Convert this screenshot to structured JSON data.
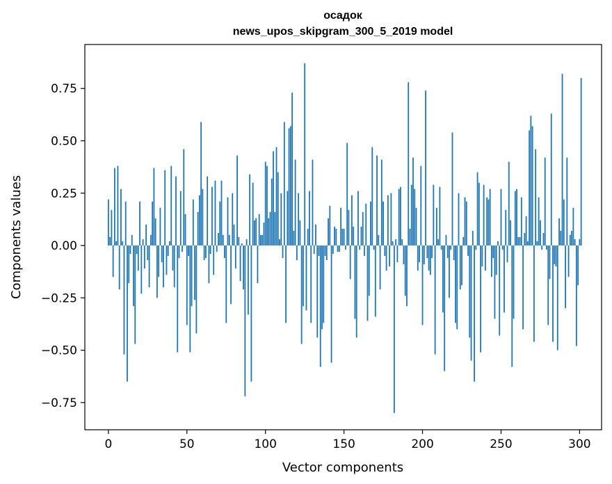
{
  "chart_data": {
    "type": "bar",
    "title_line1": "осадок",
    "title_line2": "news_upos_skipgram_300_5_2019 model",
    "xlabel": "Vector components",
    "ylabel": "Components values",
    "xlim": [
      -15,
      314
    ],
    "ylim": [
      -0.88,
      0.96
    ],
    "xticks": [
      0,
      50,
      100,
      150,
      200,
      250,
      300
    ],
    "yticks": [
      -0.75,
      -0.5,
      -0.25,
      0.0,
      0.25,
      0.5,
      0.75
    ],
    "ytick_labels": [
      "−0.75",
      "−0.50",
      "−0.25",
      "0.00",
      "0.25",
      "0.50",
      "0.75"
    ],
    "bar_color": "#1f77b4",
    "values": [
      0.22,
      0.04,
      0.17,
      -0.15,
      0.37,
      0.02,
      0.38,
      -0.21,
      0.27,
      0.02,
      -0.52,
      0.21,
      -0.65,
      -0.18,
      -0.04,
      0.05,
      -0.29,
      -0.47,
      -0.04,
      -0.12,
      0.21,
      -0.23,
      0.03,
      -0.11,
      0.1,
      -0.07,
      -0.2,
      0.05,
      0.21,
      0.37,
      0.13,
      -0.25,
      -0.15,
      0.18,
      -0.08,
      -0.2,
      0.36,
      -0.14,
      -0.05,
      0.02,
      0.38,
      -0.12,
      -0.2,
      0.33,
      -0.51,
      -0.06,
      0.26,
      -0.03,
      0.46,
      0.15,
      -0.38,
      -0.05,
      -0.51,
      -0.29,
      0.22,
      -0.26,
      -0.42,
      0.16,
      0.24,
      0.59,
      0.27,
      -0.07,
      -0.06,
      0.33,
      -0.18,
      -0.04,
      0.28,
      -0.14,
      0.31,
      -0.03,
      0.06,
      0.21,
      0.31,
      0.05,
      -0.06,
      -0.37,
      0.23,
      0.05,
      -0.28,
      0.25,
      0.1,
      -0.11,
      0.43,
      0.04,
      -0.17,
      0.01,
      -0.21,
      -0.72,
      0.03,
      -0.33,
      0.34,
      -0.65,
      0.3,
      0.12,
      0.13,
      -0.18,
      0.15,
      0.05,
      0.05,
      0.11,
      0.4,
      0.38,
      0.13,
      0.16,
      0.32,
      0.45,
      0.16,
      0.47,
      0.35,
      0.03,
      0.25,
      -0.06,
      0.59,
      -0.37,
      0.26,
      0.56,
      0.57,
      0.73,
      0.07,
      0.41,
      -0.07,
      0.25,
      0.12,
      -0.47,
      -0.29,
      0.87,
      -0.31,
      0.08,
      0.26,
      -0.37,
      0.41,
      -0.04,
      0.1,
      -0.44,
      -0.05,
      -0.58,
      -0.4,
      -0.37,
      -0.05,
      -0.07,
      0.13,
      0.19,
      -0.56,
      -0.04,
      0.09,
      0.08,
      -0.03,
      -0.03,
      0.18,
      0.08,
      0.08,
      -0.02,
      0.49,
      0.17,
      -0.16,
      0.24,
      0.09,
      -0.35,
      -0.44,
      0.26,
      -0.02,
      0.09,
      0.16,
      -0.05,
      0.2,
      -0.36,
      -0.24,
      0.21,
      0.47,
      -0.02,
      -0.34,
      0.43,
      0.05,
      -0.21,
      0.41,
      0.21,
      -0.05,
      -0.12,
      0.24,
      -0.1,
      0.25,
      0.02,
      -0.8,
      0.03,
      -0.08,
      0.27,
      0.28,
      0.03,
      -0.09,
      -0.24,
      -0.29,
      0.78,
      0.08,
      0.29,
      0.42,
      0.27,
      0.18,
      -0.12,
      -0.08,
      0.38,
      -0.38,
      -0.09,
      0.74,
      -0.06,
      -0.12,
      -0.14,
      -0.06,
      0.29,
      -0.52,
      0.18,
      0.03,
      0.28,
      -0.02,
      -0.32,
      -0.6,
      0.05,
      -0.06,
      -0.25,
      -0.02,
      0.54,
      -0.07,
      -0.37,
      -0.4,
      0.25,
      -0.21,
      -0.19,
      0.04,
      0.23,
      0.21,
      -0.05,
      -0.44,
      -0.55,
      0.07,
      -0.65,
      -0.02,
      0.35,
      0.3,
      -0.51,
      -0.1,
      0.29,
      -0.12,
      0.23,
      0.22,
      0.27,
      -0.15,
      -0.06,
      -0.35,
      -0.14,
      0.02,
      -0.43,
      0.27,
      -0.02,
      -0.32,
      0.17,
      -0.08,
      0.4,
      0.12,
      -0.58,
      -0.35,
      0.26,
      0.27,
      0.04,
      0.04,
      0.23,
      -0.4,
      0.06,
      0.14,
      0.02,
      0.55,
      0.62,
      0.57,
      -0.46,
      0.46,
      0.02,
      0.23,
      0.12,
      -0.02,
      0.06,
      0.42,
      -0.02,
      -0.38,
      -0.16,
      0.63,
      -0.46,
      -0.09,
      -0.1,
      -0.5,
      0.13,
      0.07,
      0.82,
      0.22,
      -0.3,
      0.42,
      -0.15,
      0.05,
      0.07,
      0.18,
      0.03,
      -0.48,
      -0.19,
      0.03,
      0.8
    ]
  }
}
